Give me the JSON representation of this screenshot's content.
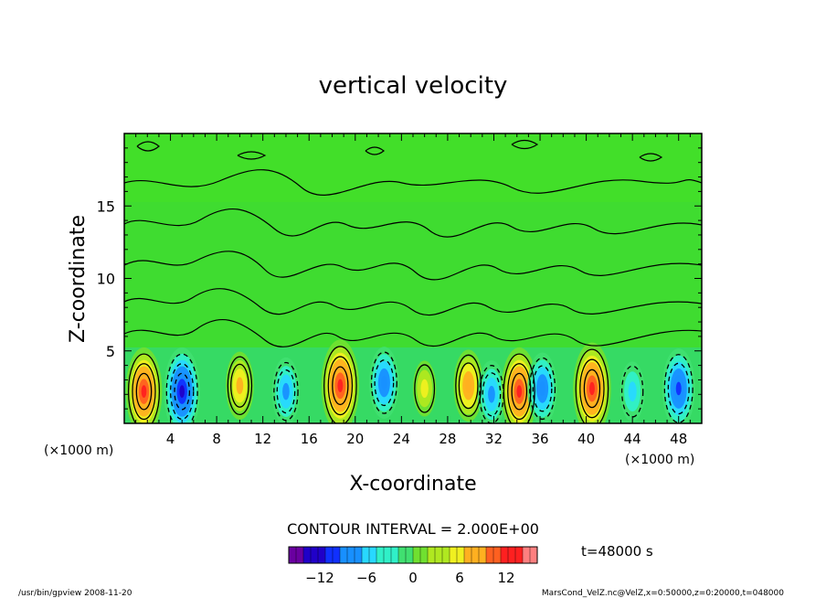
{
  "chart_data": {
    "type": "heatmap",
    "title": "vertical velocity",
    "xlabel": "X-coordinate",
    "ylabel": "Z-coordinate",
    "x_unit": "(×1000 m)",
    "y_unit": "(×1000 m)",
    "xlim": [
      0,
      50
    ],
    "ylim": [
      0,
      20
    ],
    "x_ticks": [
      "4",
      "8",
      "12",
      "16",
      "20",
      "24",
      "28",
      "32",
      "36",
      "40",
      "44",
      "48"
    ],
    "y_ticks": [
      "5",
      "10",
      "15"
    ],
    "contour_interval_text": "CONTOUR INTERVAL = 2.000E+00",
    "time_text": "t=48000 s",
    "colorbar": {
      "range": [
        -16,
        16
      ],
      "ticks": [
        "−12",
        "−6",
        "0",
        "6",
        "12"
      ]
    },
    "cells": [
      {
        "x": 1.7,
        "z": 2.2,
        "value": 11
      },
      {
        "x": 5.0,
        "z": 2.2,
        "value": -11
      },
      {
        "x": 10.0,
        "z": 2.6,
        "value": 6
      },
      {
        "x": 14.0,
        "z": 2.2,
        "value": -6
      },
      {
        "x": 18.7,
        "z": 2.6,
        "value": 12
      },
      {
        "x": 22.5,
        "z": 2.8,
        "value": -7
      },
      {
        "x": 26.0,
        "z": 2.4,
        "value": 3
      },
      {
        "x": 29.8,
        "z": 2.6,
        "value": 7
      },
      {
        "x": 31.8,
        "z": 2.0,
        "value": -6
      },
      {
        "x": 34.2,
        "z": 2.2,
        "value": 11
      },
      {
        "x": 36.2,
        "z": 2.4,
        "value": -7
      },
      {
        "x": 40.5,
        "z": 2.4,
        "value": 12
      },
      {
        "x": 44.0,
        "z": 2.2,
        "value": -4
      },
      {
        "x": 48.0,
        "z": 2.4,
        "value": -9
      }
    ],
    "grid": false,
    "legend": "bottom-center"
  },
  "footer": {
    "left": "/usr/bin/gpview   2008-11-20",
    "right": "MarsCond_VelZ.nc@VelZ,x=0:50000,z=0:20000,t=048000"
  },
  "colors": {
    "background_field": "#3fdc30",
    "palette": [
      "#6a00a0",
      "#2000c8",
      "#1030ff",
      "#1890ff",
      "#28d8ff",
      "#30f0c8",
      "#40e070",
      "#70e030",
      "#b0e820",
      "#f0f020",
      "#ffb020",
      "#ff6020",
      "#ff2020",
      "#ff8080"
    ]
  }
}
